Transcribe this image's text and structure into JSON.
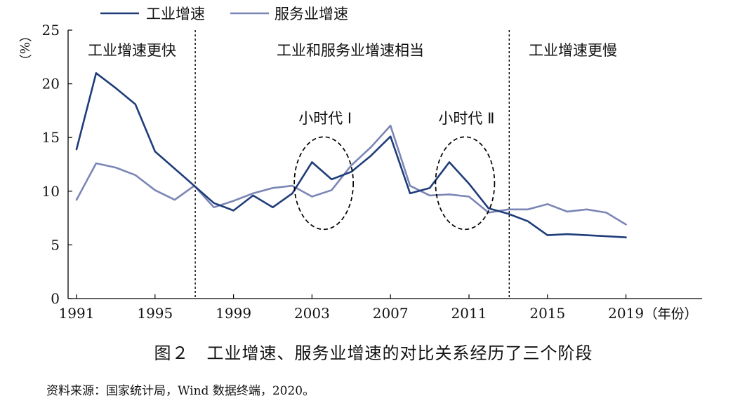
{
  "chart_data": {
    "type": "line",
    "x": [
      1991,
      1992,
      1993,
      1994,
      1995,
      1996,
      1997,
      1998,
      1999,
      2000,
      2001,
      2002,
      2003,
      2004,
      2005,
      2006,
      2007,
      2008,
      2009,
      2010,
      2011,
      2012,
      2013,
      2014,
      2015,
      2016,
      2017,
      2018,
      2019
    ],
    "series": [
      {
        "name": "工业增速",
        "color": "#1f3d7a",
        "values": [
          13.9,
          21.0,
          19.6,
          18.1,
          13.7,
          12.1,
          10.5,
          8.9,
          8.2,
          9.6,
          8.5,
          9.8,
          12.7,
          11.1,
          11.8,
          13.3,
          15.1,
          9.8,
          10.3,
          12.7,
          10.7,
          8.4,
          7.9,
          7.2,
          5.9,
          6.0,
          5.9,
          5.8,
          5.7
        ]
      },
      {
        "name": "服务业增速",
        "color": "#7b86b5",
        "values": [
          9.2,
          12.6,
          12.2,
          11.5,
          10.1,
          9.2,
          10.5,
          8.5,
          9.1,
          9.8,
          10.3,
          10.5,
          9.5,
          10.1,
          12.4,
          14.1,
          16.1,
          10.5,
          9.6,
          9.7,
          9.5,
          8.0,
          8.3,
          8.3,
          8.8,
          8.1,
          8.3,
          8.0,
          6.9
        ]
      }
    ],
    "ylim": [
      0,
      25
    ],
    "yticks": [
      "0",
      "5",
      "10",
      "15",
      "20",
      "25"
    ],
    "ylabel": "（%）",
    "xticks": [
      {
        "value": 1991,
        "label": "1991"
      },
      {
        "value": 1995,
        "label": "1995"
      },
      {
        "value": 1999,
        "label": "1999"
      },
      {
        "value": 2003,
        "label": "2003"
      },
      {
        "value": 2007,
        "label": "2007"
      },
      {
        "value": 2011,
        "label": "2011"
      },
      {
        "value": 2015,
        "label": "2015"
      },
      {
        "value": 2019,
        "label": "2019"
      }
    ],
    "xunit": "（年份）",
    "legend_position": "top-left",
    "dividers": [
      1997,
      2013
    ],
    "phases": [
      {
        "label": "工业增速更快",
        "from": 1991,
        "to": 1997
      },
      {
        "label": "工业和服务业增速相当",
        "from": 1997,
        "to": 2013
      },
      {
        "label": "工业增速更慢",
        "from": 2013,
        "to": 2019
      }
    ],
    "highlights": [
      {
        "label": "小时代 Ⅰ",
        "center_year": 2003.6,
        "center_value": 10.75
      },
      {
        "label": "小时代 Ⅱ",
        "center_year": 2010.8,
        "center_value": 10.75
      }
    ]
  },
  "caption": "图２　工业增速、服务业增速的对比关系经历了三个阶段",
  "source": "资料来源：国家统计局，Wind 数据终端，2020。"
}
